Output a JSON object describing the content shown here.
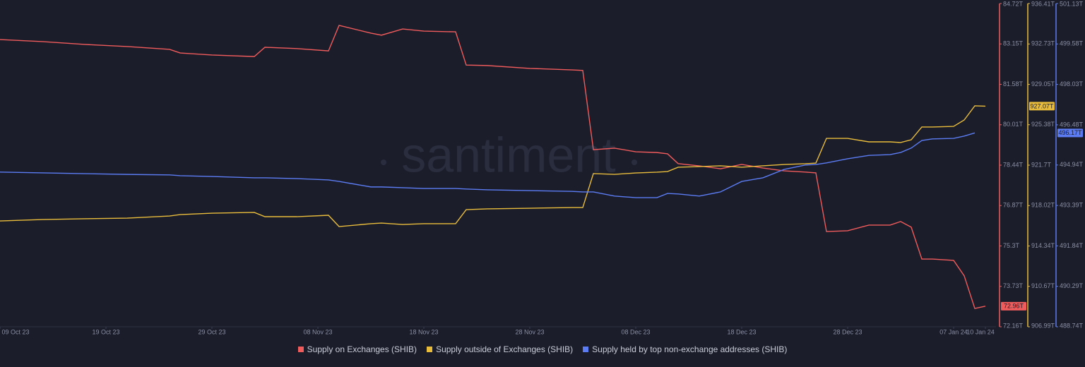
{
  "chart_data": {
    "type": "line",
    "watermark": "santiment",
    "x": [
      "2023-10-09",
      "2023-10-13",
      "2023-10-17",
      "2023-10-21",
      "2023-10-25",
      "2023-10-26",
      "2023-10-29",
      "2023-11-02",
      "2023-11-03",
      "2023-11-06",
      "2023-11-09",
      "2023-11-10",
      "2023-11-13",
      "2023-11-14",
      "2023-11-16",
      "2023-11-18",
      "2023-11-21",
      "2023-11-22",
      "2023-11-24",
      "2023-11-28",
      "2023-12-02",
      "2023-12-03",
      "2023-12-04",
      "2023-12-06",
      "2023-12-08",
      "2023-12-10",
      "2023-12-11",
      "2023-12-12",
      "2023-12-14",
      "2023-12-16",
      "2023-12-18",
      "2023-12-20",
      "2023-12-22",
      "2023-12-24",
      "2023-12-25",
      "2023-12-26",
      "2023-12-28",
      "2023-12-30",
      "2024-01-01",
      "2024-01-02",
      "2024-01-03",
      "2024-01-04",
      "2024-01-05",
      "2024-01-07",
      "2024-01-08",
      "2024-01-09",
      "2024-01-10"
    ],
    "xlim": [
      "2023-10-09",
      "2024-01-11"
    ],
    "xticks": [
      {
        "value": "2023-10-09",
        "label": "09 Oct 23"
      },
      {
        "value": "2023-10-19",
        "label": "19 Oct 23"
      },
      {
        "value": "2023-10-29",
        "label": "29 Oct 23"
      },
      {
        "value": "2023-11-08",
        "label": "08 Nov 23"
      },
      {
        "value": "2023-11-18",
        "label": "18 Nov 23"
      },
      {
        "value": "2023-11-28",
        "label": "28 Nov 23"
      },
      {
        "value": "2023-12-08",
        "label": "08 Dec 23"
      },
      {
        "value": "2023-12-18",
        "label": "18 Dec 23"
      },
      {
        "value": "2023-12-28",
        "label": "28 Dec 23"
      },
      {
        "value": "2024-01-07",
        "label": "07 Jan 24"
      },
      {
        "value": "2024-01-10",
        "label": "10 Jan 24"
      }
    ],
    "ylim": [
      72.16,
      84.72
    ],
    "yticks": [
      {
        "value": 72.16,
        "label": "72.16T"
      },
      {
        "value": 73.73,
        "label": "73.73T"
      },
      {
        "value": 75.3,
        "label": "75.3T"
      },
      {
        "value": 76.87,
        "label": "76.87T"
      },
      {
        "value": 78.44,
        "label": "78.44T"
      },
      {
        "value": 80.01,
        "label": "80.01T"
      },
      {
        "value": 81.58,
        "label": "81.58T"
      },
      {
        "value": 83.15,
        "label": "83.15T"
      },
      {
        "value": 84.72,
        "label": "84.72T"
      }
    ],
    "y2lim": [
      906.99,
      936.41
    ],
    "y2ticks": [
      {
        "value": 906.99,
        "label": "906.99T"
      },
      {
        "value": 910.67,
        "label": "910.67T"
      },
      {
        "value": 914.34,
        "label": "914.34T"
      },
      {
        "value": 918.02,
        "label": "918.02T"
      },
      {
        "value": 921.7,
        "label": "921.7T"
      },
      {
        "value": 925.38,
        "label": "925.38T"
      },
      {
        "value": 929.05,
        "label": "929.05T"
      },
      {
        "value": 932.73,
        "label": "932.73T"
      },
      {
        "value": 936.41,
        "label": "936.41T"
      }
    ],
    "y3lim": [
      488.74,
      501.13
    ],
    "y3ticks": [
      {
        "value": 488.74,
        "label": "488.74T"
      },
      {
        "value": 490.29,
        "label": "490.29T"
      },
      {
        "value": 491.84,
        "label": "491.84T"
      },
      {
        "value": 493.39,
        "label": "493.39T"
      },
      {
        "value": 494.94,
        "label": "494.94T"
      },
      {
        "value": 496.48,
        "label": "496.48T"
      },
      {
        "value": 498.03,
        "label": "498.03T"
      },
      {
        "value": 499.58,
        "label": "499.58T"
      },
      {
        "value": 501.13,
        "label": "501.13T"
      }
    ],
    "series": [
      {
        "name": "Supply on Exchanges (SHIB)",
        "color": "#f05b5b",
        "axis": "y",
        "values": [
          83.32,
          83.24,
          83.13,
          83.05,
          82.94,
          82.8,
          82.72,
          82.66,
          83.02,
          82.97,
          82.88,
          83.87,
          83.57,
          83.49,
          83.73,
          83.65,
          83.62,
          82.33,
          82.31,
          82.2,
          82.14,
          82.12,
          79.04,
          79.1,
          78.96,
          78.93,
          78.88,
          78.5,
          78.41,
          78.3,
          78.47,
          78.33,
          78.22,
          78.17,
          78.14,
          75.86,
          75.89,
          76.11,
          76.11,
          76.25,
          76.03,
          74.79,
          74.79,
          74.74,
          74.14,
          72.87,
          72.96
        ],
        "value_labels": [
          null,
          null,
          null,
          null,
          null,
          null,
          null,
          null,
          null,
          null,
          null,
          null,
          null,
          null,
          null,
          null,
          null,
          null,
          null,
          null,
          null,
          null,
          null,
          null,
          null,
          null,
          null,
          null,
          null,
          null,
          null,
          null,
          null,
          null,
          null,
          null,
          null,
          null,
          null,
          null,
          null,
          null,
          null,
          null,
          null,
          null,
          "72.96T"
        ]
      },
      {
        "name": "Supply outside of Exchanges (SHIB)",
        "color": "#e9bd3b",
        "axis": "y2",
        "values": [
          916.62,
          916.75,
          916.82,
          916.88,
          917.07,
          917.2,
          917.33,
          917.4,
          917.01,
          917.01,
          917.14,
          916.11,
          916.37,
          916.43,
          916.3,
          916.37,
          916.37,
          917.65,
          917.72,
          917.78,
          917.84,
          917.84,
          920.93,
          920.86,
          920.99,
          921.06,
          921.12,
          921.51,
          921.57,
          921.64,
          921.51,
          921.64,
          921.76,
          921.83,
          921.89,
          924.14,
          924.14,
          923.82,
          923.82,
          923.76,
          924.01,
          925.17,
          925.17,
          925.23,
          925.81,
          927.1,
          927.07
        ],
        "value_labels": [
          null,
          null,
          null,
          null,
          null,
          null,
          null,
          null,
          null,
          null,
          null,
          null,
          null,
          null,
          null,
          null,
          null,
          null,
          null,
          null,
          null,
          null,
          null,
          null,
          null,
          null,
          null,
          null,
          null,
          null,
          null,
          null,
          null,
          null,
          null,
          null,
          null,
          null,
          null,
          null,
          null,
          null,
          null,
          null,
          null,
          null,
          "927.07T"
        ]
      },
      {
        "name": "Supply held by top non-exchange addresses (SHIB)",
        "color": "#5b7cf2",
        "axis": "y3",
        "values": [
          494.67,
          494.64,
          494.61,
          494.58,
          494.56,
          494.53,
          494.5,
          494.45,
          494.45,
          494.42,
          494.37,
          494.31,
          494.1,
          494.1,
          494.07,
          494.04,
          494.04,
          494.02,
          493.99,
          493.96,
          493.93,
          493.91,
          493.91,
          493.75,
          493.69,
          493.69,
          493.85,
          493.83,
          493.75,
          493.91,
          494.31,
          494.45,
          494.77,
          494.94,
          494.96,
          495.02,
          495.18,
          495.31,
          495.34,
          495.42,
          495.59,
          495.88,
          495.94,
          495.96,
          496.05,
          496.17,
          null
        ],
        "value_labels": [
          null,
          null,
          null,
          null,
          null,
          null,
          null,
          null,
          null,
          null,
          null,
          null,
          null,
          null,
          null,
          null,
          null,
          null,
          null,
          null,
          null,
          null,
          null,
          null,
          null,
          null,
          null,
          null,
          null,
          null,
          null,
          null,
          null,
          null,
          null,
          null,
          null,
          null,
          null,
          null,
          null,
          null,
          null,
          null,
          null,
          "496.17T",
          null
        ]
      }
    ],
    "legend": "bottom"
  }
}
